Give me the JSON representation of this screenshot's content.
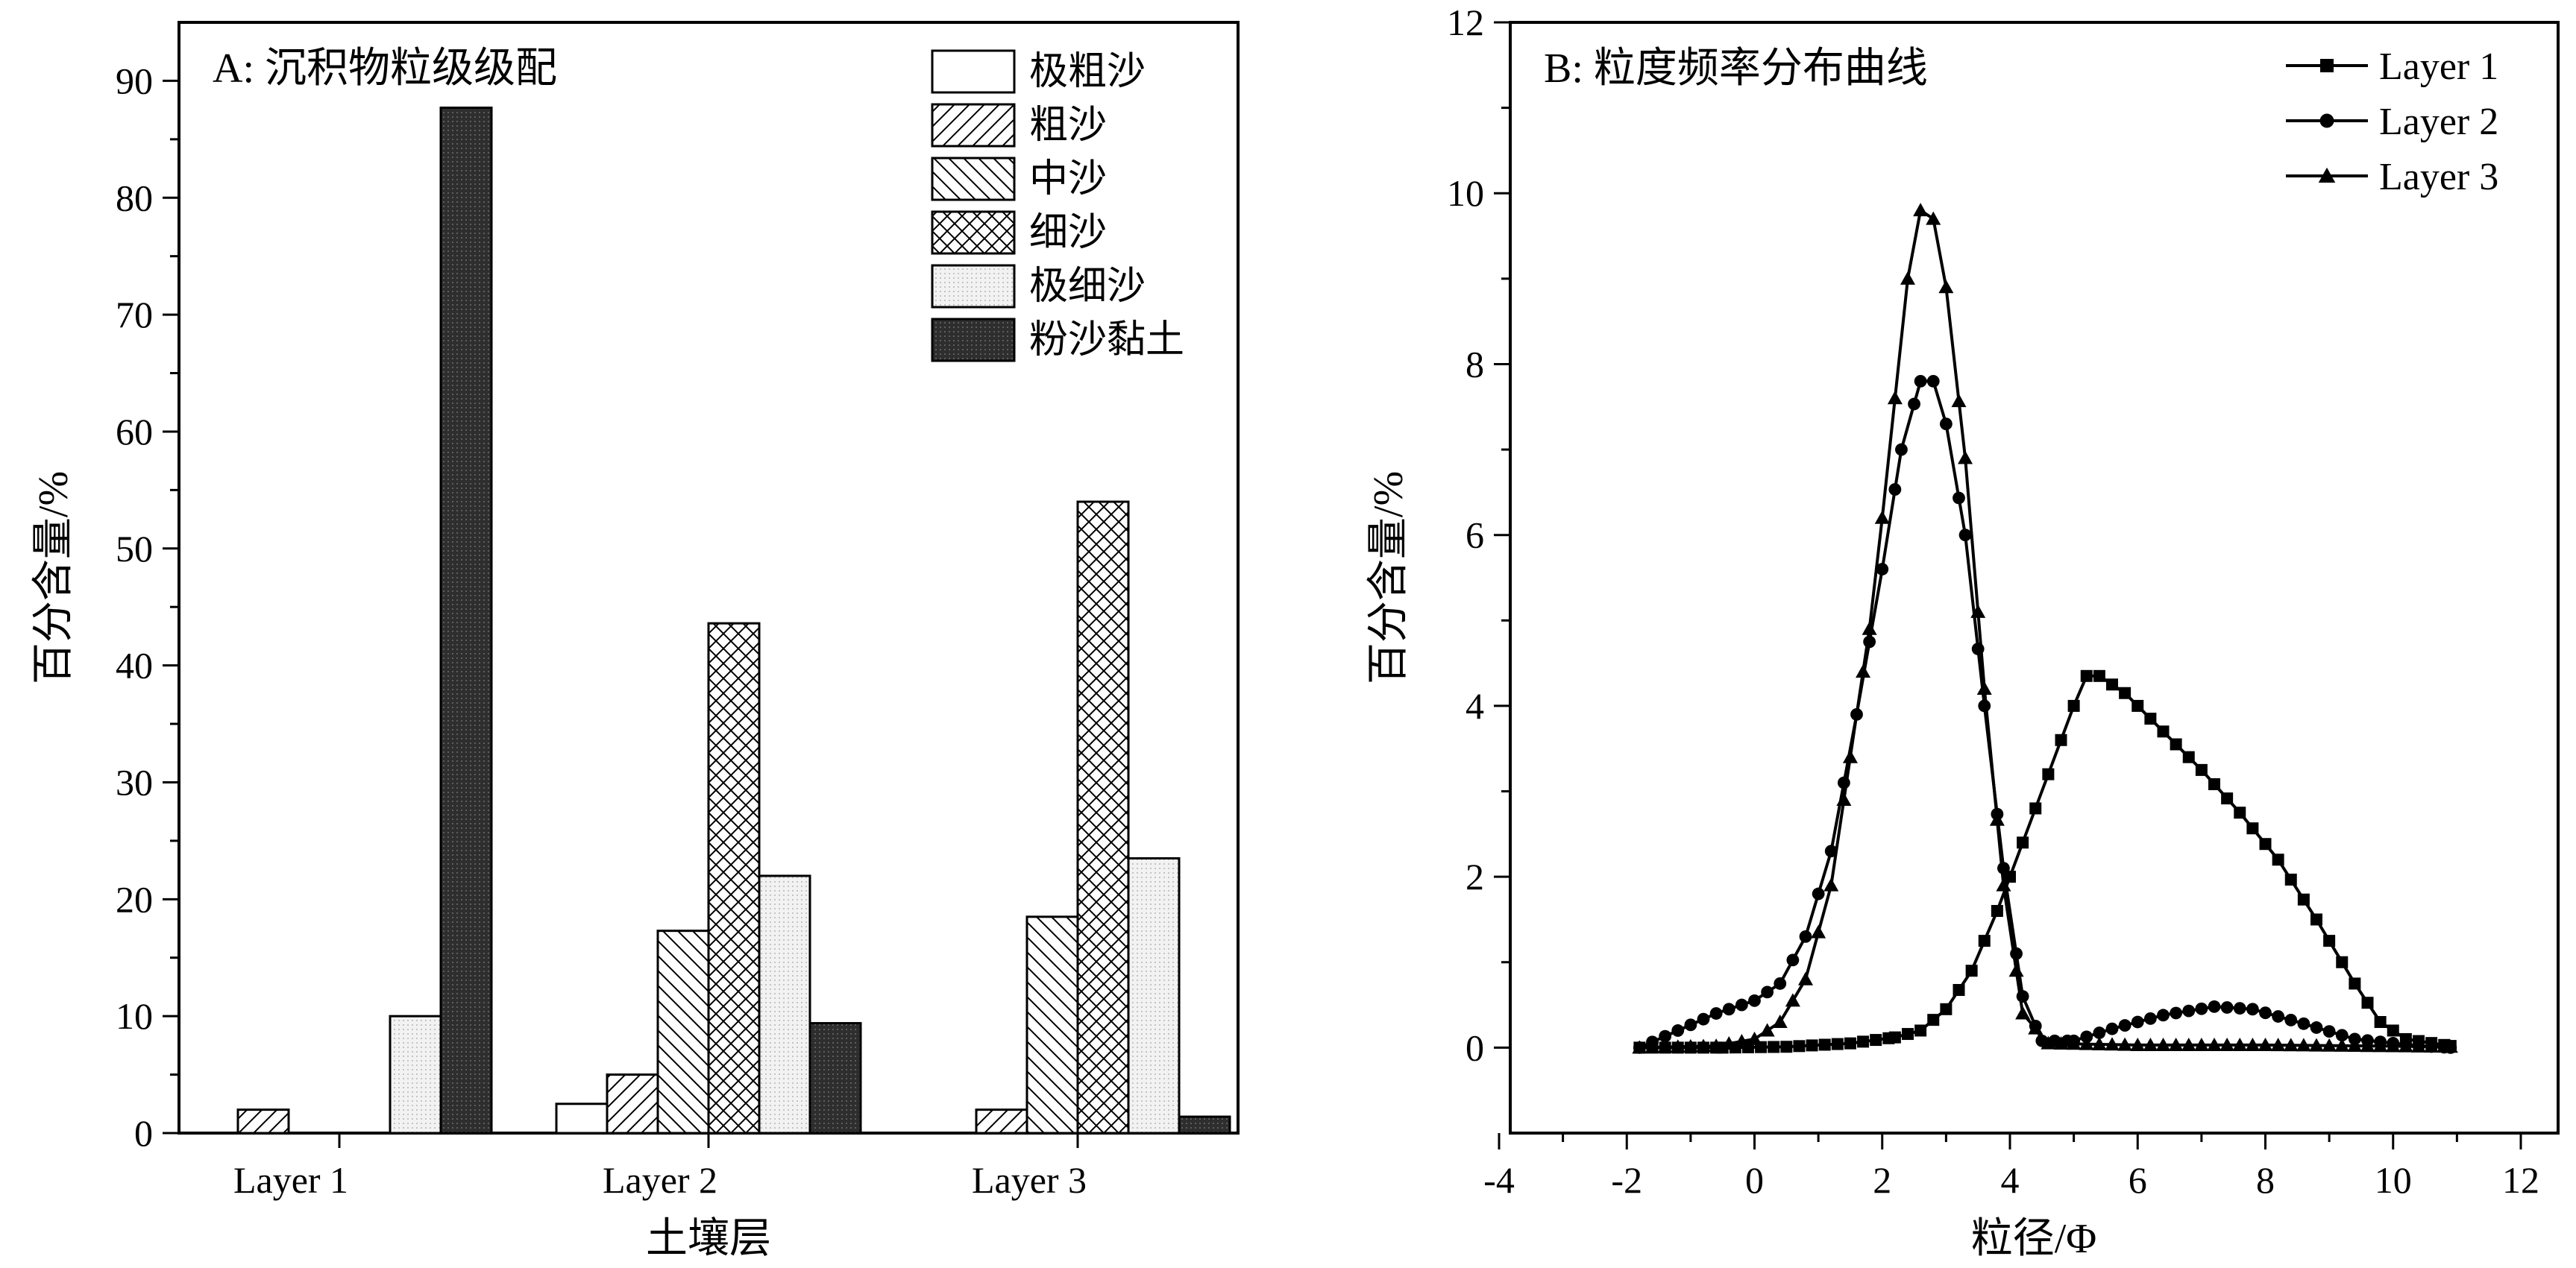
{
  "chart_data": [
    {
      "type": "bar",
      "title": "A: 沉积物粒级级配",
      "xlabel": "土壤层",
      "ylabel": "百分含量/%",
      "ylim": [
        0,
        95
      ],
      "yticks": [
        0,
        10,
        20,
        30,
        40,
        50,
        60,
        70,
        80,
        90
      ],
      "categories": [
        "Layer 1",
        "Layer 2",
        "Layer 3"
      ],
      "legend_position": "top-right",
      "series": [
        {
          "name": "极粗沙",
          "pattern": "empty",
          "values": [
            0,
            2.5,
            0
          ]
        },
        {
          "name": "粗沙",
          "pattern": "forward-hatch",
          "values": [
            2.0,
            5.0,
            2.0
          ]
        },
        {
          "name": "中沙",
          "pattern": "backward-hatch",
          "values": [
            0,
            17.3,
            18.5
          ]
        },
        {
          "name": "细沙",
          "pattern": "cross-hatch",
          "values": [
            0,
            43.6,
            54.0
          ]
        },
        {
          "name": "极细沙",
          "pattern": "light-dots",
          "values": [
            10.0,
            22.0,
            23.5
          ]
        },
        {
          "name": "粉沙黏土",
          "pattern": "dense-dark",
          "values": [
            87.7,
            9.4,
            1.4
          ]
        }
      ]
    },
    {
      "type": "line",
      "title": "B: 粒度频率分布曲线",
      "xlabel": "粒径/Φ",
      "ylabel": "百分含量/%",
      "xlim": [
        -4,
        12
      ],
      "ylim": [
        -1,
        12
      ],
      "xticks": [
        -4,
        -2,
        0,
        2,
        4,
        6,
        8,
        10,
        12
      ],
      "yticks": [
        0,
        2,
        4,
        6,
        8,
        10,
        12
      ],
      "legend_position": "top-right",
      "series": [
        {
          "name": "Layer 1",
          "marker": "square",
          "points": [
            [
              -1.8,
              0
            ],
            [
              -0.5,
              0
            ],
            [
              0.5,
              0.01
            ],
            [
              1.5,
              0.05
            ],
            [
              2.2,
              0.12
            ],
            [
              2.6,
              0.2
            ],
            [
              3.0,
              0.45
            ],
            [
              3.4,
              0.9
            ],
            [
              3.8,
              1.6
            ],
            [
              4.2,
              2.4
            ],
            [
              4.6,
              3.2
            ],
            [
              5.0,
              4.0
            ],
            [
              5.2,
              4.35
            ],
            [
              5.4,
              4.35
            ],
            [
              5.8,
              4.15
            ],
            [
              6.4,
              3.7
            ],
            [
              7.0,
              3.25
            ],
            [
              7.6,
              2.75
            ],
            [
              8.2,
              2.2
            ],
            [
              8.8,
              1.5
            ],
            [
              9.4,
              0.75
            ],
            [
              9.8,
              0.3
            ],
            [
              10.2,
              0.1
            ],
            [
              10.9,
              0.02
            ]
          ]
        },
        {
          "name": "Layer 2",
          "marker": "circle",
          "points": [
            [
              -1.8,
              0
            ],
            [
              -1.2,
              0.2
            ],
            [
              -0.6,
              0.4
            ],
            [
              0,
              0.55
            ],
            [
              0.4,
              0.75
            ],
            [
              0.8,
              1.3
            ],
            [
              1.2,
              2.3
            ],
            [
              1.6,
              3.9
            ],
            [
              2.0,
              5.6
            ],
            [
              2.3,
              7.0
            ],
            [
              2.6,
              7.8
            ],
            [
              2.8,
              7.8
            ],
            [
              3.0,
              7.3
            ],
            [
              3.3,
              6.0
            ],
            [
              3.6,
              4.0
            ],
            [
              3.9,
              2.1
            ],
            [
              4.2,
              0.6
            ],
            [
              4.5,
              0.08
            ],
            [
              5.0,
              0.08
            ],
            [
              5.6,
              0.22
            ],
            [
              6.4,
              0.38
            ],
            [
              7.2,
              0.48
            ],
            [
              7.8,
              0.45
            ],
            [
              8.6,
              0.28
            ],
            [
              9.4,
              0.1
            ],
            [
              10.4,
              0.02
            ],
            [
              10.9,
              0
            ]
          ]
        },
        {
          "name": "Layer 3",
          "marker": "triangle",
          "points": [
            [
              -1.8,
              0
            ],
            [
              -0.6,
              0.02
            ],
            [
              0,
              0.1
            ],
            [
              0.4,
              0.3
            ],
            [
              0.8,
              0.8
            ],
            [
              1.2,
              1.9
            ],
            [
              1.5,
              3.4
            ],
            [
              1.8,
              4.9
            ],
            [
              2.0,
              6.2
            ],
            [
              2.2,
              7.6
            ],
            [
              2.4,
              9.0
            ],
            [
              2.6,
              9.8
            ],
            [
              2.8,
              9.7
            ],
            [
              3.0,
              8.9
            ],
            [
              3.3,
              6.9
            ],
            [
              3.6,
              4.2
            ],
            [
              3.9,
              1.9
            ],
            [
              4.2,
              0.4
            ],
            [
              4.6,
              0.05
            ],
            [
              6.0,
              0.03
            ],
            [
              8.0,
              0.03
            ],
            [
              10.9,
              0.01
            ]
          ]
        }
      ]
    }
  ]
}
